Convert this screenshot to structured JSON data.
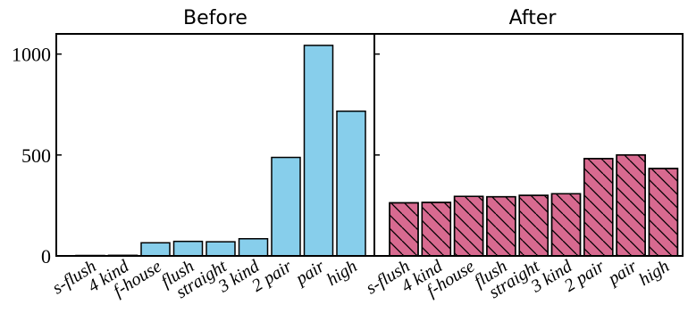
{
  "chart_data": [
    {
      "type": "bar",
      "title": "Before",
      "categories": [
        "s-flush",
        "4 kind",
        "f-house",
        "flush",
        "straight",
        "3 kind",
        "2 pair",
        "pair",
        "high"
      ],
      "values": [
        1,
        3,
        65,
        72,
        70,
        85,
        488,
        1043,
        717
      ],
      "color": "#87ceeb",
      "hatch": false,
      "ylim": [
        0,
        1100
      ],
      "yticks": [
        0,
        500,
        1000
      ],
      "ytick_labels": [
        "0",
        "500",
        "1000"
      ],
      "xlabel": "",
      "ylabel": "",
      "grid": false
    },
    {
      "type": "bar",
      "title": "After",
      "categories": [
        "s-flush",
        "4 kind",
        "f-house",
        "flush",
        "straight",
        "3 kind",
        "2 pair",
        "pair",
        "high"
      ],
      "values": [
        263,
        265,
        295,
        293,
        300,
        308,
        482,
        500,
        433
      ],
      "color": "#d86a90",
      "hatch": true,
      "ylim": [
        0,
        1100
      ],
      "yticks": [
        0,
        500,
        1000
      ],
      "ytick_labels": [],
      "xlabel": "",
      "ylabel": "",
      "grid": false
    }
  ]
}
